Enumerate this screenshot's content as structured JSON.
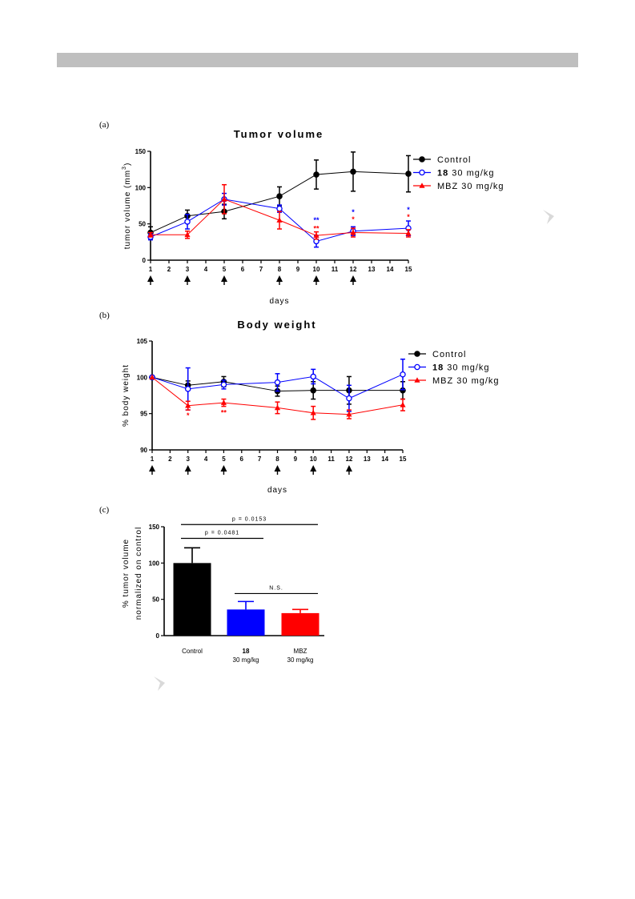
{
  "header_bar": {
    "color": "#bfbfbf"
  },
  "panels": {
    "a": "(a)",
    "b": "(b)",
    "c": "(c)"
  },
  "colors": {
    "control": "#000000",
    "compound18": "#0000ff",
    "mbz": "#ff0000"
  },
  "chart_data": [
    {
      "id": "a",
      "type": "line",
      "title": "Tumor volume",
      "xlabel": "days",
      "ylabel": "tumor volume (mm",
      "ylabel_sup": "3",
      "ylabel_close": ")",
      "xlim": [
        1,
        15
      ],
      "ylim": [
        0,
        150
      ],
      "xticks": [
        1,
        2,
        3,
        4,
        5,
        6,
        7,
        8,
        9,
        10,
        11,
        12,
        13,
        14,
        15
      ],
      "yticks": [
        0,
        50,
        100,
        150
      ],
      "dosing_days": [
        1,
        3,
        5,
        8,
        10,
        12
      ],
      "legend_position": "top-right",
      "series": [
        {
          "key": "control",
          "name": "Control",
          "marker": "circle-filled",
          "x": [
            1,
            3,
            5,
            8,
            10,
            12,
            15
          ],
          "y": [
            38,
            61,
            67,
            88,
            118,
            122,
            119
          ],
          "err": [
            8,
            8,
            10,
            13,
            20,
            27,
            25
          ]
        },
        {
          "key": "compound18",
          "name_bold": "18",
          "name": " 30 mg/kg",
          "marker": "circle-open",
          "x": [
            1,
            3,
            5,
            8,
            10,
            12,
            15
          ],
          "y": [
            32,
            53,
            84,
            71,
            26,
            40,
            44
          ],
          "err": [
            4,
            10,
            8,
            5,
            8,
            6,
            10
          ]
        },
        {
          "key": "mbz",
          "name": "MBZ 30 mg/kg",
          "marker": "triangle-filled",
          "x": [
            1,
            3,
            5,
            8,
            10,
            12,
            15
          ],
          "y": [
            35,
            35,
            84,
            55,
            34,
            38,
            37
          ],
          "err": [
            3,
            5,
            20,
            12,
            5,
            6,
            5
          ]
        }
      ],
      "significance": [
        {
          "x": 10,
          "y": 52,
          "text": "**",
          "color": "#0000ff"
        },
        {
          "x": 10,
          "y": 40,
          "text": "**",
          "color": "#ff0000"
        },
        {
          "x": 12,
          "y": 63,
          "text": "*",
          "color": "#0000ff"
        },
        {
          "x": 12,
          "y": 53,
          "text": "*",
          "color": "#ff0000"
        },
        {
          "x": 15,
          "y": 66,
          "text": "*",
          "color": "#0000ff"
        },
        {
          "x": 15,
          "y": 56,
          "text": "*",
          "color": "#ff0000"
        }
      ]
    },
    {
      "id": "b",
      "type": "line",
      "title": "Body weight",
      "xlabel": "days",
      "ylabel": "% body weight",
      "xlim": [
        1,
        15
      ],
      "ylim": [
        90,
        105
      ],
      "xticks": [
        1,
        2,
        3,
        4,
        5,
        6,
        7,
        8,
        9,
        10,
        11,
        12,
        13,
        14,
        15
      ],
      "yticks": [
        90,
        95,
        100,
        105
      ],
      "dosing_days": [
        1,
        3,
        5,
        8,
        10,
        12
      ],
      "legend_position": "top-right",
      "series": [
        {
          "key": "control",
          "name": "Control",
          "marker": "circle-filled",
          "x": [
            1,
            3,
            5,
            8,
            10,
            12,
            15
          ],
          "y": [
            100,
            98.9,
            99.4,
            98.1,
            98.2,
            98.2,
            98.2
          ],
          "err": [
            0,
            0.6,
            0.7,
            0.7,
            1.2,
            1.9,
            1.2
          ]
        },
        {
          "key": "compound18",
          "name_bold": "18",
          "name": " 30 mg/kg",
          "marker": "circle-open",
          "x": [
            1,
            3,
            5,
            8,
            10,
            12,
            15
          ],
          "y": [
            100,
            98.4,
            99.0,
            99.3,
            100.1,
            97.1,
            100.4
          ],
          "err": [
            0,
            2.9,
            0.6,
            1.2,
            1.0,
            1.8,
            2.1
          ]
        },
        {
          "key": "mbz",
          "name": "MBZ 30 mg/kg",
          "marker": "triangle-filled",
          "x": [
            1,
            3,
            5,
            8,
            10,
            12,
            15
          ],
          "y": [
            100,
            96.1,
            96.5,
            95.8,
            95.1,
            94.9,
            96.2
          ],
          "err": [
            0,
            0.6,
            0.5,
            0.8,
            0.9,
            0.6,
            0.8
          ]
        }
      ],
      "significance": [
        {
          "x": 3,
          "y": 94.4,
          "text": "*",
          "color": "#ff0000"
        },
        {
          "x": 5,
          "y": 94.8,
          "text": "**",
          "color": "#ff0000"
        }
      ]
    },
    {
      "id": "c",
      "type": "bar",
      "ylabel_line1": "% tumor volume",
      "ylabel_line2": "normalized on control",
      "ylim": [
        0,
        150
      ],
      "yticks": [
        0,
        50,
        100,
        150
      ],
      "categories": [
        {
          "line1": "Control",
          "line2": ""
        },
        {
          "line1": "18",
          "line2": "30 mg/kg"
        },
        {
          "line1": "MBZ",
          "line2": "30 mg/kg"
        }
      ],
      "values": [
        100,
        36,
        31
      ],
      "errors": [
        21,
        11,
        5
      ],
      "bar_colors": [
        "#000000",
        "#0000ff",
        "#ff0000"
      ],
      "brackets": [
        {
          "from": 0,
          "to": 2,
          "y": 153,
          "text": "p = 0.0153"
        },
        {
          "from": 0,
          "to": 1,
          "y": 134,
          "text": "p = 0.0481"
        },
        {
          "from": 1,
          "to": 2,
          "y": 58,
          "text": "N.S."
        }
      ]
    }
  ]
}
